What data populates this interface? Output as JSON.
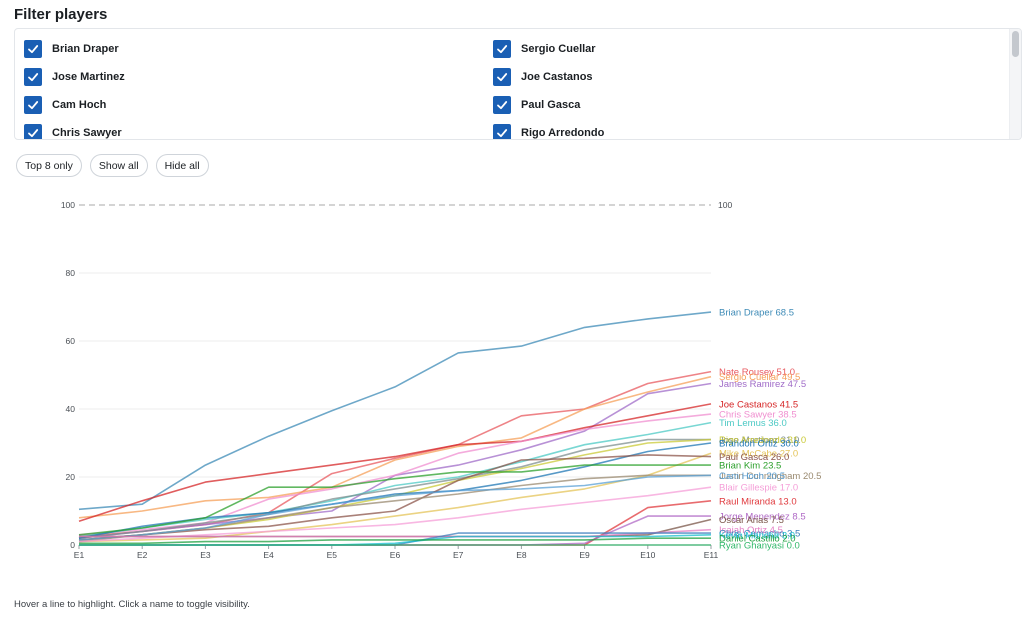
{
  "header": {
    "title": "Filter players"
  },
  "filters": [
    {
      "name": "Brian Draper",
      "checked": true
    },
    {
      "name": "Sergio Cuellar",
      "checked": true
    },
    {
      "name": "Jose Martinez",
      "checked": true
    },
    {
      "name": "Joe Castanos",
      "checked": true
    },
    {
      "name": "Cam Hoch",
      "checked": true
    },
    {
      "name": "Paul Gasca",
      "checked": true
    },
    {
      "name": "Chris Sawyer",
      "checked": true
    },
    {
      "name": "Rigo Arredondo",
      "checked": true
    }
  ],
  "controls": {
    "top8_label": "Top 8 only",
    "show_all_label": "Show all",
    "hide_all_label": "Hide all"
  },
  "footer": {
    "hint": "Hover a line to highlight. Click a name to toggle visibility."
  },
  "chart_data": {
    "type": "line",
    "title": "",
    "xlabel": "",
    "ylabel": "",
    "x": [
      "E1",
      "E2",
      "E3",
      "E4",
      "E5",
      "E6",
      "E7",
      "E8",
      "E9",
      "E10",
      "E11"
    ],
    "yticks": [
      0,
      20,
      40,
      60,
      80,
      100
    ],
    "ylim": [
      0,
      100
    ],
    "grid": true,
    "reference_line": {
      "value": 100,
      "label": "100",
      "style": "dashed",
      "color": "#bbbbbb"
    },
    "series": [
      {
        "name": "Brian Draper",
        "color": "#3e8bb7",
        "values": [
          10.5,
          12.0,
          23.5,
          32.0,
          39.5,
          46.5,
          56.5,
          58.5,
          64.0,
          66.5,
          68.5
        ],
        "label": "Brian Draper 68.5"
      },
      {
        "name": "Nate Rousey",
        "color": "#e8595f",
        "values": [
          2.5,
          4.0,
          6.0,
          9.5,
          21.0,
          25.5,
          29.5,
          38.0,
          40.0,
          47.5,
          51.0
        ],
        "label": "Nate Rousey 51.0"
      },
      {
        "name": "Sergio Cuellar",
        "color": "#f5a05a",
        "values": [
          8.0,
          10.0,
          13.0,
          14.0,
          17.0,
          25.0,
          29.0,
          31.5,
          40.0,
          45.0,
          49.5
        ],
        "label": "Sergio Cuellar 49.5"
      },
      {
        "name": "James Ramirez",
        "color": "#a06cc8",
        "values": [
          2.0,
          4.0,
          6.0,
          8.0,
          10.0,
          20.5,
          23.5,
          28.0,
          33.5,
          44.5,
          47.5
        ],
        "label": "James Ramirez 47.5"
      },
      {
        "name": "Joe Castanos",
        "color": "#d62728",
        "values": [
          7.0,
          13.0,
          18.5,
          21.0,
          23.5,
          26.0,
          29.5,
          30.5,
          34.5,
          38.0,
          41.5
        ],
        "label": "Joe Castanos 41.5"
      },
      {
        "name": "Chris Sawyer",
        "color": "#f08fd0",
        "values": [
          3.0,
          4.5,
          6.5,
          13.5,
          16.5,
          20.5,
          27.0,
          30.5,
          34.0,
          36.5,
          38.5
        ],
        "label": "Chris Sawyer 38.5"
      },
      {
        "name": "Tim Lemus",
        "color": "#4cc9c4",
        "values": [
          2.5,
          5.0,
          7.5,
          9.5,
          13.0,
          17.5,
          20.0,
          24.5,
          29.5,
          32.5,
          36.0
        ],
        "label": "Tim Lemus 36.0"
      },
      {
        "name": "Jose Martinez",
        "color": "#7f8f8f",
        "values": [
          2.0,
          4.0,
          6.5,
          9.0,
          13.5,
          16.5,
          19.5,
          23.0,
          28.0,
          31.0,
          31.0
        ],
        "label": "Jose Martinez 31.0"
      },
      {
        "name": "Rigo Arredondo",
        "color": "#c9c937",
        "values": [
          1.5,
          3.0,
          5.0,
          7.5,
          11.0,
          14.5,
          19.0,
          22.5,
          26.5,
          30.0,
          31.0
        ],
        "label": "Rigo Arredondo 31.0"
      },
      {
        "name": "Brandon Ortiz",
        "color": "#1f77b4",
        "values": [
          2.0,
          5.5,
          8.0,
          9.5,
          12.0,
          15.0,
          16.0,
          19.0,
          23.0,
          27.5,
          30.0
        ],
        "label": "Brandon Ortiz 30.0"
      },
      {
        "name": "Mike McCabe",
        "color": "#e4c45a",
        "values": [
          1.0,
          1.5,
          2.0,
          4.0,
          6.0,
          8.5,
          11.0,
          14.0,
          16.5,
          20.5,
          27.0
        ],
        "label": "Mike McCabe 27.0"
      },
      {
        "name": "Paul Gasca",
        "color": "#8c564b",
        "values": [
          1.5,
          3.0,
          4.5,
          5.5,
          8.0,
          10.0,
          19.0,
          25.0,
          25.5,
          26.5,
          26.0
        ],
        "label": "Paul Gasca 26.0"
      },
      {
        "name": "Brian Kim",
        "color": "#2ca02c",
        "values": [
          3.0,
          5.0,
          8.0,
          17.0,
          17.0,
          19.5,
          21.5,
          21.5,
          23.5,
          23.5,
          23.5
        ],
        "label": "Brian Kim 23.5"
      },
      {
        "name": "Justin Cunningham",
        "color": "#9a8a70",
        "values": [
          1.0,
          3.0,
          5.0,
          8.0,
          11.0,
          13.0,
          15.0,
          17.5,
          19.5,
          20.5,
          20.5
        ],
        "label": "Justin Cunningham 20.5"
      },
      {
        "name": "Cam Hoch",
        "color": "#5aa0d6",
        "values": [
          1.5,
          3.0,
          5.0,
          9.0,
          12.0,
          14.5,
          16.0,
          16.5,
          17.5,
          20.0,
          20.5
        ],
        "label": "Cam Hoch 20.5"
      },
      {
        "name": "Blair Gillespie",
        "color": "#f59fd8",
        "values": [
          1.0,
          2.0,
          3.0,
          4.0,
          5.0,
          6.0,
          8.0,
          10.5,
          12.5,
          14.5,
          17.0
        ],
        "label": "Blair Gillespie 17.0"
      },
      {
        "name": "Raul Miranda",
        "color": "#e03a3e",
        "values": [
          0.0,
          0.0,
          0.0,
          0.0,
          0.0,
          0.0,
          0.0,
          0.0,
          0.0,
          11.0,
          13.0
        ],
        "label": "Raul Miranda 13.0"
      },
      {
        "name": "Jorge Menendez",
        "color": "#b06ac6",
        "values": [
          0.0,
          0.0,
          0.0,
          0.0,
          0.0,
          0.0,
          0.0,
          0.0,
          0.5,
          8.5,
          8.5
        ],
        "label": "Jorge Menendez 8.5"
      },
      {
        "name": "Oscar Arias",
        "color": "#7a5548",
        "values": [
          2.5,
          2.5,
          2.5,
          2.5,
          2.5,
          2.5,
          2.5,
          2.5,
          2.5,
          3.0,
          7.5
        ],
        "label": "Oscar Arias 7.5"
      },
      {
        "name": "Isaiah Ortiz",
        "color": "#e47fc4",
        "values": [
          2.5,
          2.5,
          2.5,
          2.5,
          2.5,
          2.5,
          2.5,
          2.5,
          2.5,
          3.5,
          4.5
        ],
        "label": "Isaiah Ortiz 4.5"
      },
      {
        "name": "Chris Camacho",
        "color": "#3c7fbc",
        "values": [
          0.0,
          0.0,
          0.0,
          0.0,
          0.0,
          0.0,
          3.5,
          3.5,
          3.5,
          3.5,
          3.5
        ],
        "label": "Chris Camacho 3.5"
      },
      {
        "name": "Kevin Mancha",
        "color": "#17becf",
        "values": [
          0.0,
          0.0,
          0.0,
          0.0,
          0.0,
          0.5,
          2.5,
          2.5,
          2.5,
          2.5,
          3.0
        ],
        "label": "Kevin Mancha 3.0"
      },
      {
        "name": "Daniel Castillo",
        "color": "#20a040",
        "values": [
          0.5,
          0.5,
          1.0,
          1.0,
          1.5,
          1.5,
          1.5,
          1.5,
          1.5,
          2.0,
          2.0
        ],
        "label": "Daniel Castillo 2.0"
      },
      {
        "name": "Ryan Ghanyasi",
        "color": "#31b86a",
        "values": [
          0.0,
          0.0,
          0.0,
          0.0,
          0.0,
          0.0,
          0.0,
          0.0,
          0.0,
          0.0,
          0.0
        ],
        "label": "Ryan Ghanyasi 0.0"
      }
    ]
  }
}
